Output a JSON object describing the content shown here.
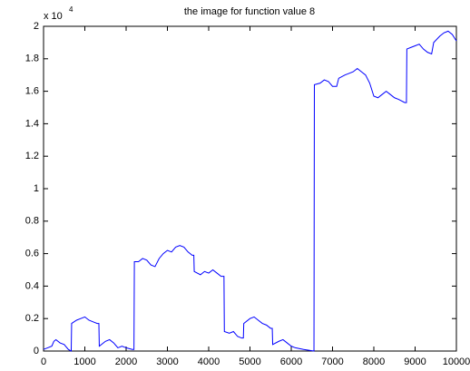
{
  "chart_data": {
    "type": "line",
    "title": "the image for function value 8",
    "multiplier": {
      "base": "x 10",
      "exponent": "4"
    },
    "x": [
      0,
      100,
      200,
      250,
      300,
      400,
      500,
      600,
      670,
      680,
      800,
      900,
      1000,
      1100,
      1200,
      1300,
      1340,
      1350,
      1500,
      1600,
      1700,
      1800,
      1900,
      2000,
      2150,
      2190,
      2200,
      2300,
      2400,
      2500,
      2600,
      2700,
      2800,
      2900,
      3000,
      3100,
      3200,
      3300,
      3400,
      3500,
      3600,
      3640,
      3650,
      3800,
      3900,
      4000,
      4100,
      4200,
      4300,
      4370,
      4380,
      4500,
      4600,
      4700,
      4800,
      4840,
      4850,
      5000,
      5100,
      5200,
      5300,
      5400,
      5500,
      5540,
      5550,
      5700,
      5800,
      5900,
      6000,
      6100,
      6300,
      6550,
      6560,
      6700,
      6800,
      6900,
      7000,
      7100,
      7150,
      7300,
      7500,
      7600,
      7700,
      7800,
      7900,
      8000,
      8100,
      8200,
      8300,
      8400,
      8500,
      8600,
      8750,
      8790,
      8800,
      8900,
      9000,
      9100,
      9200,
      9300,
      9400,
      9450,
      9600,
      9700,
      9800,
      9900,
      10000
    ],
    "values": [
      0.01,
      0.02,
      0.03,
      0.06,
      0.07,
      0.05,
      0.04,
      0.01,
      0,
      0.17,
      0.19,
      0.2,
      0.21,
      0.19,
      0.18,
      0.17,
      0.17,
      0.03,
      0.06,
      0.07,
      0.05,
      0.02,
      0.03,
      0.02,
      0.01,
      0.01,
      0.55,
      0.55,
      0.57,
      0.56,
      0.53,
      0.52,
      0.57,
      0.6,
      0.62,
      0.61,
      0.64,
      0.65,
      0.64,
      0.61,
      0.59,
      0.59,
      0.49,
      0.47,
      0.49,
      0.48,
      0.5,
      0.48,
      0.46,
      0.46,
      0.12,
      0.11,
      0.12,
      0.09,
      0.08,
      0.08,
      0.17,
      0.2,
      0.21,
      0.19,
      0.17,
      0.16,
      0.14,
      0.14,
      0.04,
      0.06,
      0.07,
      0.05,
      0.03,
      0.02,
      0.01,
      0,
      1.64,
      1.65,
      1.67,
      1.66,
      1.63,
      1.63,
      1.68,
      1.7,
      1.72,
      1.74,
      1.72,
      1.7,
      1.65,
      1.57,
      1.56,
      1.58,
      1.6,
      1.58,
      1.56,
      1.55,
      1.53,
      1.53,
      1.86,
      1.87,
      1.88,
      1.89,
      1.86,
      1.84,
      1.83,
      1.9,
      1.94,
      1.96,
      1.97,
      1.95,
      1.91
    ],
    "color": "#0000ff",
    "xlim": [
      0,
      10000
    ],
    "xticks": [
      0,
      1000,
      2000,
      3000,
      4000,
      5000,
      6000,
      7000,
      8000,
      9000,
      10000
    ],
    "ylim": [
      0,
      2
    ],
    "yticks": [
      0,
      0.2,
      0.4,
      0.6,
      0.8,
      1,
      1.2,
      1.4,
      1.6,
      1.8,
      2
    ],
    "grid": false
  }
}
